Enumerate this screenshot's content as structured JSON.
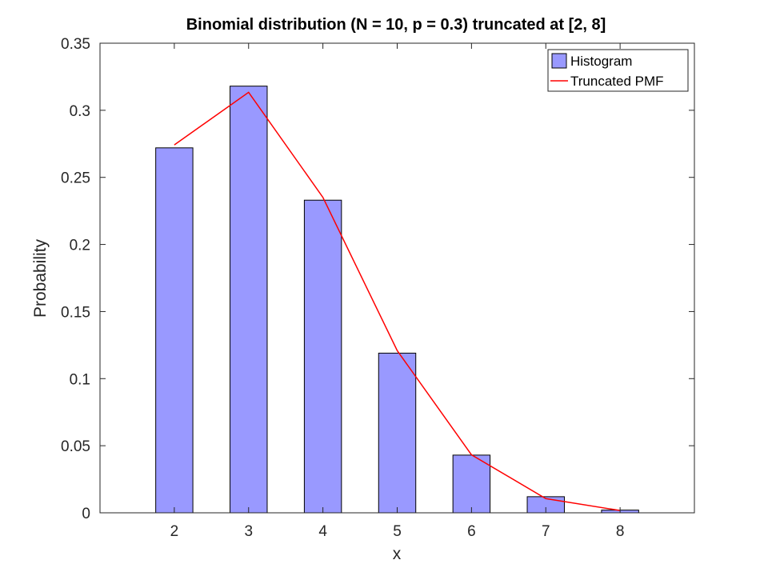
{
  "chart_data": {
    "type": "bar",
    "title": "Binomial distribution (N = 10, p = 0.3) truncated at [2, 8]",
    "xlabel": "x",
    "ylabel": "Probability",
    "xlim": [
      1,
      9
    ],
    "ylim": [
      0,
      0.35
    ],
    "x_ticks": [
      "2",
      "3",
      "4",
      "5",
      "6",
      "7",
      "8"
    ],
    "y_ticks": [
      "0",
      "0.05",
      "0.1",
      "0.15",
      "0.2",
      "0.25",
      "0.3",
      "0.35"
    ],
    "y_tick_values": [
      0,
      0.05,
      0.1,
      0.15,
      0.2,
      0.25,
      0.3,
      0.35
    ],
    "grid": false,
    "legend_position": "top-right",
    "series": [
      {
        "name": "Histogram",
        "kind": "bar",
        "color": "#9999ff",
        "edge_color": "#000000",
        "x": [
          2,
          3,
          4,
          5,
          6,
          7,
          8
        ],
        "values": [
          0.272,
          0.318,
          0.233,
          0.119,
          0.043,
          0.012,
          0.002
        ]
      },
      {
        "name": "Truncated PMF",
        "kind": "line",
        "color": "#ff0000",
        "x": [
          2,
          3,
          4,
          5,
          6,
          7,
          8
        ],
        "values": [
          0.2742,
          0.3134,
          0.2351,
          0.1209,
          0.0432,
          0.0106,
          0.0017
        ]
      }
    ]
  }
}
